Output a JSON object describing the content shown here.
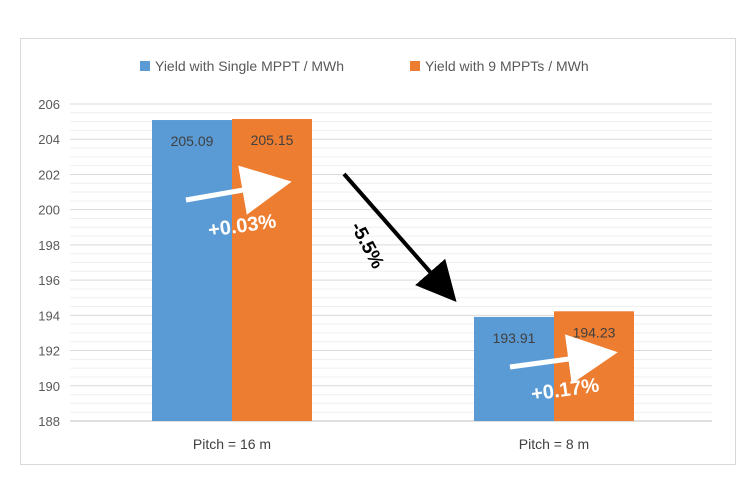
{
  "chart_data": {
    "type": "bar",
    "categories": [
      "Pitch = 16 m",
      "Pitch = 8 m"
    ],
    "series": [
      {
        "name": "Yield with Single MPPT / MWh",
        "values": [
          205.09,
          193.91
        ],
        "color": "#5b9bd5"
      },
      {
        "name": "Yield with 9 MPPTs / MWh",
        "values": [
          205.15,
          194.23
        ],
        "color": "#ed7d31"
      }
    ],
    "ylim": [
      188,
      206
    ],
    "yticks": [
      188,
      190,
      192,
      194,
      196,
      198,
      200,
      202,
      204,
      206
    ],
    "grid": true,
    "legend": "top-center",
    "annotations": [
      {
        "text": "+0.03%",
        "category": 0
      },
      {
        "text": "+0.17%",
        "category": 1
      },
      {
        "text": "-5.5%",
        "between": [
          0,
          1
        ]
      }
    ]
  }
}
